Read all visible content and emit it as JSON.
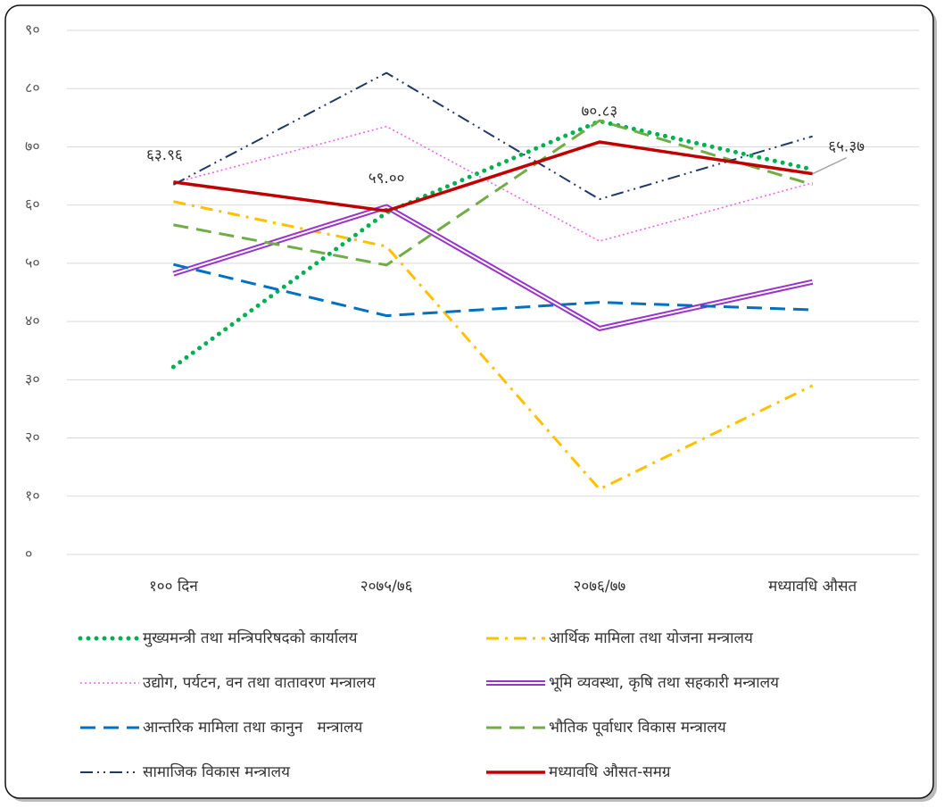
{
  "chart_data": {
    "type": "line",
    "categories": [
      "१०० दिन",
      "२०७५/७६",
      "२०७६/७७",
      "मध्यावधि औसत"
    ],
    "ylim": [
      0,
      90
    ],
    "yticks": [
      {
        "value": 0,
        "label": "०"
      },
      {
        "value": 10,
        "label": "१०"
      },
      {
        "value": 20,
        "label": "२०"
      },
      {
        "value": 30,
        "label": "३०"
      },
      {
        "value": 40,
        "label": "४०"
      },
      {
        "value": 50,
        "label": "५०"
      },
      {
        "value": 60,
        "label": "६०"
      },
      {
        "value": 70,
        "label": "७०"
      },
      {
        "value": 80,
        "label": "८०"
      },
      {
        "value": 90,
        "label": "९०"
      }
    ],
    "grid": true,
    "legend": "bottom",
    "series": [
      {
        "name": "मुख्यमन्त्री तथा मन्त्रिपरिषदको कार्यालय",
        "color": "#00b050",
        "style": "round-dot",
        "values": [
          32.2,
          58.7,
          74.4,
          66.1
        ]
      },
      {
        "name": "आर्थिक मामिला तथा योजना मन्त्रालय",
        "color": "#ffc000",
        "style": "dash-dot",
        "values": [
          60.6,
          52.9,
          11.2,
          29.0
        ]
      },
      {
        "name": "उद्योग, पर्यटन, वन तथा वातावरण मन्त्रालय",
        "color": "#ee66ee",
        "style": "dot",
        "values": [
          63.8,
          73.5,
          53.8,
          63.8
        ]
      },
      {
        "name": "भूमि व्यवस्था, कृषि तथा सहकारी मन्त्रालय",
        "color": "#9933cc",
        "style": "double",
        "values": [
          48.2,
          59.7,
          38.8,
          46.8
        ]
      },
      {
        "name": "आन्तरिक मामिला तथा कानुन   मन्त्रालय",
        "color": "#0070c0",
        "style": "dash",
        "values": [
          49.8,
          41.0,
          43.3,
          42.0
        ]
      },
      {
        "name": "भौतिक पूर्वाधार विकास मन्त्रालय",
        "color": "#70ad47",
        "style": "dash",
        "values": [
          56.6,
          49.7,
          74.5,
          63.5
        ]
      },
      {
        "name": "सामाजिक विकास मन्त्रालय",
        "color": "#1f3864",
        "style": "dash-dot-dot",
        "values": [
          63.5,
          82.7,
          61.0,
          71.8
        ]
      },
      {
        "name": "मध्यावधि औसत-समग्र",
        "color": "#c00000",
        "style": "solid",
        "values": [
          63.96,
          59.0,
          70.83,
          65.37
        ],
        "value_labels": [
          "६३.९६",
          "५९.००",
          "७०.८३",
          "६५.३७"
        ]
      }
    ]
  }
}
